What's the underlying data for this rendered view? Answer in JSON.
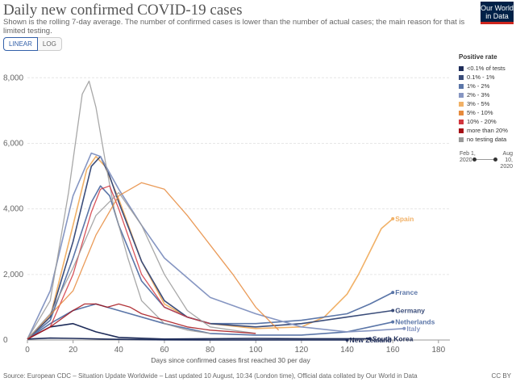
{
  "header": {
    "title": "Daily new confirmed COVID-19 cases",
    "subtitle": "Shown is the rolling 7-day average. The number of confirmed cases is lower than the number of actual cases; the main reason for that is limited testing.",
    "scale_linear": "LINEAR",
    "scale_log": "LOG",
    "logo_text": "Our World in Data"
  },
  "legend": {
    "title": "Positive rate",
    "items": [
      {
        "label": "<0.1% of tests",
        "color": "#1f2d5a"
      },
      {
        "label": "0.1% - 1%",
        "color": "#3b4d7a"
      },
      {
        "label": "1% - 2%",
        "color": "#5b76a8"
      },
      {
        "label": "2% - 3%",
        "color": "#8696c2"
      },
      {
        "label": "3% - 5%",
        "color": "#f1b167"
      },
      {
        "label": "5% - 10%",
        "color": "#e68a3c"
      },
      {
        "label": "10% - 20%",
        "color": "#d2363e"
      },
      {
        "label": "more than 20%",
        "color": "#a50f15"
      },
      {
        "label": "no testing data",
        "color": "#999999"
      }
    ]
  },
  "timeline": {
    "start": "Feb 1, 2020",
    "end": "Aug 10, 2020"
  },
  "footer": {
    "source": "Source: European CDC – Situation Update Worldwide – Last updated 10 August, 10:34 (London time), Official data collated by Our World in Data",
    "license": "CC BY"
  },
  "chart_data": {
    "type": "line",
    "title": "Daily new confirmed COVID-19 cases",
    "xlabel": "Days since confirmed cases first reached 30 per day",
    "ylabel": "",
    "xlim": [
      0,
      185
    ],
    "ylim": [
      0,
      8500
    ],
    "x_ticks": [
      0,
      20,
      40,
      60,
      80,
      100,
      120,
      140,
      160,
      180
    ],
    "y_ticks": [
      0,
      2000,
      4000,
      6000,
      8000
    ],
    "y_tick_labels": [
      "0",
      "2,000",
      "4,000",
      "6,000",
      "8,000"
    ],
    "grid": true,
    "legend_position": "right",
    "series": [
      {
        "name": "Spain",
        "color": "#f1b167",
        "x": [
          0,
          10,
          20,
          26,
          30,
          34,
          40,
          50,
          60,
          70,
          80,
          100,
          120,
          130,
          140,
          145,
          150,
          155,
          160
        ],
        "y": [
          30,
          700,
          3500,
          5200,
          5600,
          5300,
          4300,
          2400,
          1100,
          700,
          500,
          350,
          400,
          700,
          1400,
          2000,
          2700,
          3400,
          3700
        ]
      },
      {
        "name": "France",
        "color": "#5b76a8",
        "x": [
          0,
          10,
          20,
          28,
          32,
          36,
          40,
          50,
          60,
          70,
          80,
          100,
          120,
          140,
          150,
          160
        ],
        "y": [
          30,
          600,
          2500,
          4200,
          4700,
          4400,
          3500,
          1800,
          1000,
          700,
          500,
          500,
          600,
          800,
          1100,
          1450
        ]
      },
      {
        "name": "Germany",
        "color": "#3b4d7a",
        "x": [
          0,
          10,
          20,
          28,
          32,
          36,
          40,
          50,
          60,
          70,
          80,
          100,
          120,
          140,
          150,
          160
        ],
        "y": [
          30,
          700,
          3000,
          5300,
          5600,
          5000,
          4200,
          2400,
          1200,
          700,
          500,
          400,
          500,
          700,
          800,
          900
        ]
      },
      {
        "name": "Netherlands",
        "color": "#5b76a8",
        "x": [
          0,
          10,
          20,
          30,
          40,
          60,
          80,
          100,
          120,
          140,
          150,
          160
        ],
        "y": [
          30,
          500,
          900,
          1100,
          900,
          500,
          200,
          150,
          150,
          250,
          400,
          550
        ]
      },
      {
        "name": "Italy",
        "color": "#8696c2",
        "x": [
          0,
          10,
          20,
          28,
          32,
          40,
          50,
          60,
          80,
          100,
          120,
          140,
          150,
          165
        ],
        "y": [
          30,
          1500,
          4400,
          5700,
          5600,
          4600,
          3500,
          2500,
          1300,
          800,
          400,
          250,
          280,
          350
        ]
      },
      {
        "name": "New Zealand",
        "color": "#1f2d5a",
        "x": [
          0,
          10,
          20,
          40,
          60,
          80,
          100,
          120,
          140
        ],
        "y": [
          30,
          60,
          50,
          20,
          5,
          1,
          2,
          1,
          1
        ]
      },
      {
        "name": "South Korea",
        "color": "#1f2d5a",
        "x": [
          0,
          10,
          20,
          30,
          40,
          60,
          80,
          100,
          120,
          140,
          150
        ],
        "y": [
          30,
          400,
          500,
          250,
          80,
          30,
          40,
          50,
          40,
          40,
          40
        ]
      },
      {
        "name": "",
        "color": "#999999",
        "x": [
          0,
          10,
          18,
          24,
          27,
          30,
          34,
          38,
          44,
          50,
          60,
          70,
          80
        ],
        "y": [
          30,
          1200,
          4500,
          7500,
          7900,
          7100,
          5500,
          4000,
          2500,
          1200,
          500,
          300,
          200
        ]
      },
      {
        "name": "",
        "color": "#d2363e",
        "x": [
          0,
          10,
          20,
          28,
          32,
          36,
          40,
          50,
          60,
          70,
          80
        ],
        "y": [
          30,
          400,
          2000,
          3900,
          4600,
          4700,
          4000,
          2000,
          1000,
          700,
          500
        ]
      },
      {
        "name": "",
        "color": "#e68a3c",
        "x": [
          0,
          20,
          30,
          40,
          50,
          60,
          70,
          80,
          90,
          100,
          110
        ],
        "y": [
          30,
          1500,
          3200,
          4400,
          4800,
          4600,
          3800,
          2900,
          2000,
          1000,
          300
        ]
      },
      {
        "name": "",
        "color": "#999999",
        "x": [
          0,
          10,
          20,
          30,
          40,
          50,
          60,
          70,
          80,
          100
        ],
        "y": [
          30,
          800,
          2200,
          3800,
          4500,
          3500,
          2000,
          900,
          400,
          200
        ]
      },
      {
        "name": "",
        "color": "#a50f15",
        "x": [
          0,
          10,
          20,
          25,
          30,
          35,
          40,
          45,
          50,
          60,
          70,
          80,
          100
        ],
        "y": [
          30,
          400,
          900,
          1100,
          1100,
          1000,
          1100,
          1000,
          800,
          600,
          400,
          300,
          200
        ]
      }
    ]
  }
}
